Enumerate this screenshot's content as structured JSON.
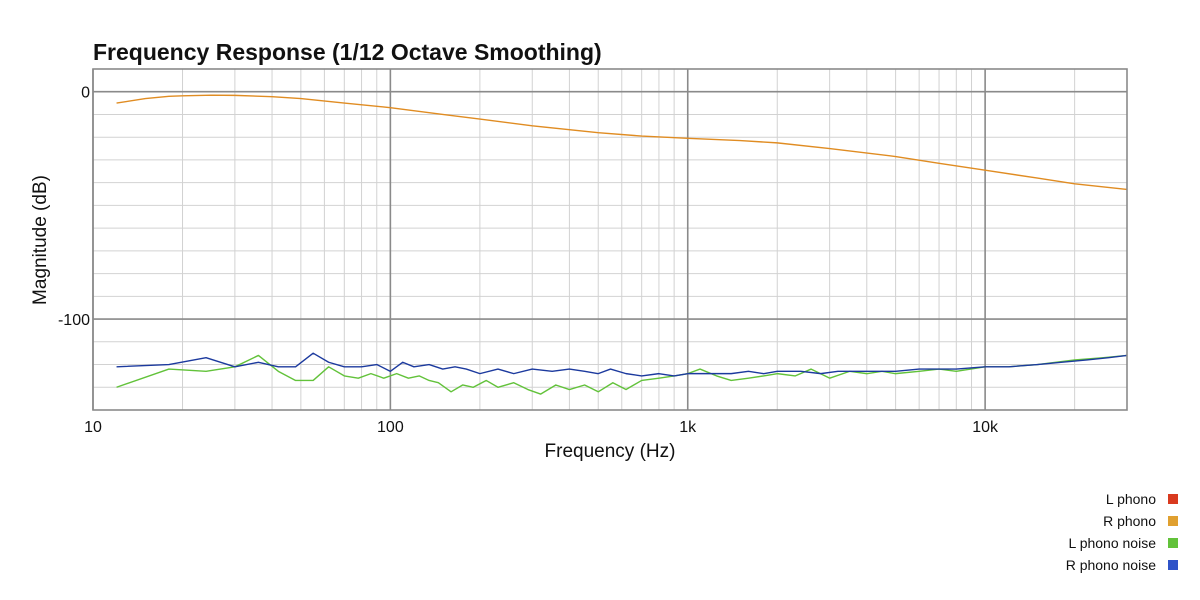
{
  "chart_data": {
    "type": "line",
    "title": "Frequency Response (1/12 Octave Smoothing)",
    "xlabel": "Frequency (Hz)",
    "ylabel": "Magnitude (dB)",
    "xscale": "log",
    "xlim": [
      10,
      30000
    ],
    "ylim": [
      -140,
      10
    ],
    "x_ticks": [
      {
        "value": 10,
        "label": "10"
      },
      {
        "value": 100,
        "label": "100"
      },
      {
        "value": 1000,
        "label": "1k"
      },
      {
        "value": 10000,
        "label": "10k"
      }
    ],
    "y_ticks": [
      {
        "value": 0,
        "label": "0"
      },
      {
        "value": -100,
        "label": "-100"
      }
    ],
    "grid": true,
    "legend_position": "bottom-right",
    "series": [
      {
        "name": "L phono",
        "color": "#d93a1f",
        "points": []
      },
      {
        "name": "R phono",
        "color": "#e0a030",
        "line_color": "#e08c22",
        "points": [
          [
            12,
            -5
          ],
          [
            15,
            -3
          ],
          [
            18,
            -2
          ],
          [
            20,
            -1.8
          ],
          [
            25,
            -1.5
          ],
          [
            30,
            -1.6
          ],
          [
            40,
            -2.2
          ],
          [
            50,
            -3
          ],
          [
            70,
            -5
          ],
          [
            100,
            -7
          ],
          [
            150,
            -10
          ],
          [
            200,
            -12
          ],
          [
            300,
            -15
          ],
          [
            500,
            -18
          ],
          [
            700,
            -19.5
          ],
          [
            1000,
            -20.5
          ],
          [
            1500,
            -21.5
          ],
          [
            2000,
            -22.5
          ],
          [
            3000,
            -25
          ],
          [
            5000,
            -28.5
          ],
          [
            7000,
            -31.5
          ],
          [
            10000,
            -34.5
          ],
          [
            15000,
            -38
          ],
          [
            20000,
            -40.5
          ],
          [
            30000,
            -43
          ]
        ]
      },
      {
        "name": "L phono noise",
        "color": "#62c23a",
        "points": [
          [
            12,
            -130
          ],
          [
            18,
            -122
          ],
          [
            24,
            -123
          ],
          [
            30,
            -121
          ],
          [
            36,
            -116
          ],
          [
            42,
            -123
          ],
          [
            48,
            -127
          ],
          [
            55,
            -127
          ],
          [
            62,
            -121
          ],
          [
            70,
            -125
          ],
          [
            78,
            -126
          ],
          [
            86,
            -124
          ],
          [
            95,
            -126
          ],
          [
            105,
            -124
          ],
          [
            115,
            -126
          ],
          [
            125,
            -125
          ],
          [
            135,
            -127
          ],
          [
            145,
            -128
          ],
          [
            160,
            -132
          ],
          [
            175,
            -129
          ],
          [
            190,
            -130
          ],
          [
            210,
            -127
          ],
          [
            230,
            -130
          ],
          [
            260,
            -128
          ],
          [
            290,
            -131
          ],
          [
            320,
            -133
          ],
          [
            360,
            -129
          ],
          [
            400,
            -131
          ],
          [
            450,
            -129
          ],
          [
            500,
            -132
          ],
          [
            560,
            -128
          ],
          [
            620,
            -131
          ],
          [
            700,
            -127
          ],
          [
            800,
            -126
          ],
          [
            900,
            -125
          ],
          [
            1000,
            -124
          ],
          [
            1100,
            -122
          ],
          [
            1250,
            -125
          ],
          [
            1400,
            -127
          ],
          [
            1600,
            -126
          ],
          [
            1800,
            -125
          ],
          [
            2000,
            -124
          ],
          [
            2300,
            -125
          ],
          [
            2600,
            -122
          ],
          [
            3000,
            -126
          ],
          [
            3500,
            -123
          ],
          [
            4000,
            -124
          ],
          [
            4500,
            -123
          ],
          [
            5000,
            -124
          ],
          [
            6000,
            -123
          ],
          [
            7000,
            -122
          ],
          [
            8000,
            -123
          ],
          [
            10000,
            -121
          ],
          [
            12000,
            -121
          ],
          [
            15000,
            -120
          ],
          [
            20000,
            -118
          ],
          [
            25000,
            -117
          ],
          [
            30000,
            -116
          ]
        ]
      },
      {
        "name": "R phono noise",
        "color": "#2f53c8",
        "line_color": "#1c3a9e",
        "points": [
          [
            12,
            -121
          ],
          [
            18,
            -120
          ],
          [
            24,
            -117
          ],
          [
            30,
            -121
          ],
          [
            36,
            -119
          ],
          [
            42,
            -121
          ],
          [
            48,
            -121
          ],
          [
            55,
            -115
          ],
          [
            62,
            -119
          ],
          [
            70,
            -121
          ],
          [
            80,
            -121
          ],
          [
            90,
            -120
          ],
          [
            100,
            -123
          ],
          [
            110,
            -119
          ],
          [
            120,
            -121
          ],
          [
            135,
            -120
          ],
          [
            150,
            -122
          ],
          [
            165,
            -121
          ],
          [
            180,
            -122
          ],
          [
            200,
            -124
          ],
          [
            230,
            -122
          ],
          [
            260,
            -124
          ],
          [
            300,
            -122
          ],
          [
            350,
            -123
          ],
          [
            400,
            -122
          ],
          [
            450,
            -123
          ],
          [
            500,
            -124
          ],
          [
            550,
            -122
          ],
          [
            620,
            -124
          ],
          [
            700,
            -125
          ],
          [
            800,
            -124
          ],
          [
            900,
            -125
          ],
          [
            1000,
            -124
          ],
          [
            1200,
            -124
          ],
          [
            1400,
            -124
          ],
          [
            1600,
            -123
          ],
          [
            1800,
            -124
          ],
          [
            2000,
            -123
          ],
          [
            2400,
            -123
          ],
          [
            2800,
            -124
          ],
          [
            3200,
            -123
          ],
          [
            4000,
            -123
          ],
          [
            5000,
            -123
          ],
          [
            6000,
            -122
          ],
          [
            7000,
            -122
          ],
          [
            8000,
            -122
          ],
          [
            10000,
            -121
          ],
          [
            12000,
            -121
          ],
          [
            15000,
            -120
          ],
          [
            18000,
            -119
          ],
          [
            22000,
            -118
          ],
          [
            26000,
            -117
          ],
          [
            30000,
            -116
          ]
        ]
      }
    ]
  }
}
